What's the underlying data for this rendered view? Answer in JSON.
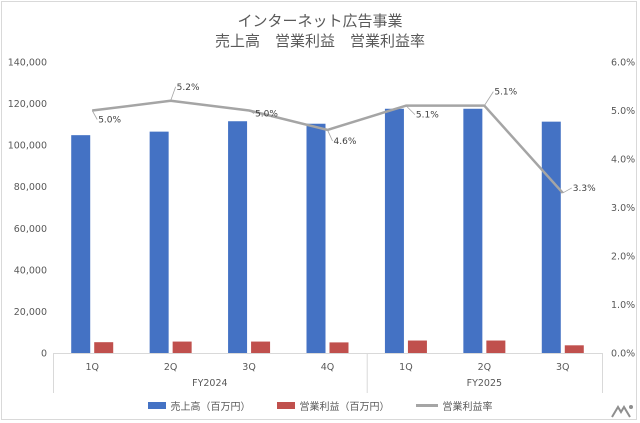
{
  "chart_data": {
    "type": "bar",
    "title": "インターネット広告事業",
    "subtitle": "売上高　営業利益　営業利益率",
    "categories": [
      "1Q",
      "2Q",
      "3Q",
      "4Q",
      "1Q",
      "2Q",
      "3Q"
    ],
    "groups": [
      {
        "label": "FY2024",
        "count": 4
      },
      {
        "label": "FY2025",
        "count": 3
      }
    ],
    "series": [
      {
        "name": "売上高（百万円）",
        "type": "bar",
        "axis": "left",
        "color": "#4472c4",
        "values": [
          104800,
          106500,
          111500,
          110300,
          117500,
          117500,
          111300
        ]
      },
      {
        "name": "営業利益（百万円）",
        "type": "bar",
        "axis": "left",
        "color": "#c0504d",
        "values": [
          5200,
          5500,
          5500,
          5100,
          6000,
          6000,
          3700
        ]
      },
      {
        "name": "営業利益率",
        "type": "line",
        "axis": "right",
        "color": "#a5a5a5",
        "values": [
          5.0,
          5.2,
          5.0,
          4.6,
          5.1,
          5.1,
          3.3
        ]
      }
    ],
    "data_labels": [
      "5.0%",
      "5.2%",
      "5.0%",
      "4.6%",
      "5.1%",
      "5.1%",
      "3.3%"
    ],
    "ylim": [
      0,
      140000
    ],
    "yticks": [
      "0",
      "20,000",
      "40,000",
      "60,000",
      "80,000",
      "100,000",
      "120,000",
      "140,000"
    ],
    "y2lim": [
      0,
      6.0
    ],
    "y2ticks": [
      "0.0%",
      "1.0%",
      "2.0%",
      "3.0%",
      "4.0%",
      "5.0%",
      "6.0%"
    ],
    "grid": false,
    "legend_position": "bottom"
  }
}
